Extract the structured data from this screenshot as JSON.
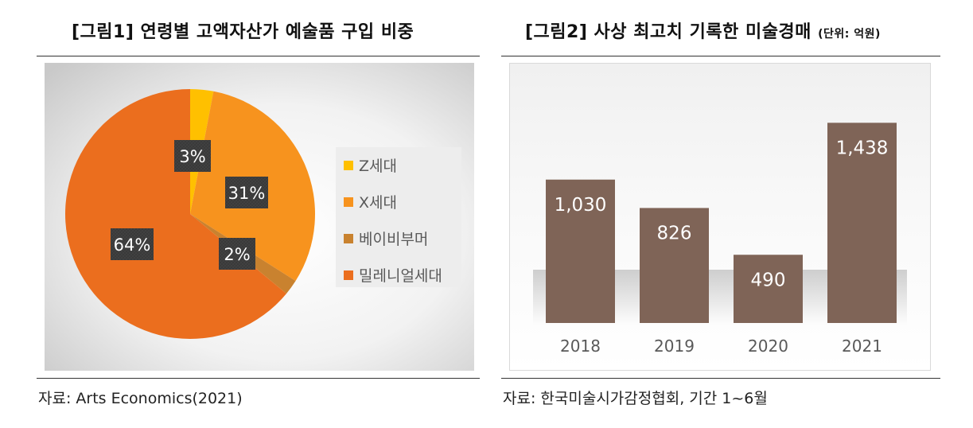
{
  "left_panel": {
    "title": "[그림1] 연령별 고액자산가 예술품 구입 비중",
    "source": "자료: Arts Economics(2021)"
  },
  "right_panel": {
    "title": "[그림2] 사상 최고치 기록한 미술경매",
    "unit": "(단위: 억원)",
    "source": "자료: 한국미술시가감정협회, 기간 1~6월"
  },
  "chart_data": [
    {
      "type": "pie",
      "categories": [
        "Z세대",
        "X세대",
        "베이비부머",
        "밀레니얼세대"
      ],
      "values": [
        3,
        31,
        2,
        64
      ],
      "data_labels": [
        "3%",
        "31%",
        "2%",
        "64%"
      ],
      "colors": [
        "#ffc000",
        "#f7931e",
        "#c9822f",
        "#eb6e1e"
      ],
      "legend": "right",
      "title": ""
    },
    {
      "type": "bar",
      "categories": [
        "2018",
        "2019",
        "2020",
        "2021"
      ],
      "values": [
        1030,
        826,
        490,
        1438
      ],
      "data_labels": [
        "1,030",
        "826",
        "490",
        "1,438"
      ],
      "bar_color": "#7f6457",
      "ylim": [
        0,
        1600
      ],
      "grid": false,
      "title": ""
    }
  ]
}
